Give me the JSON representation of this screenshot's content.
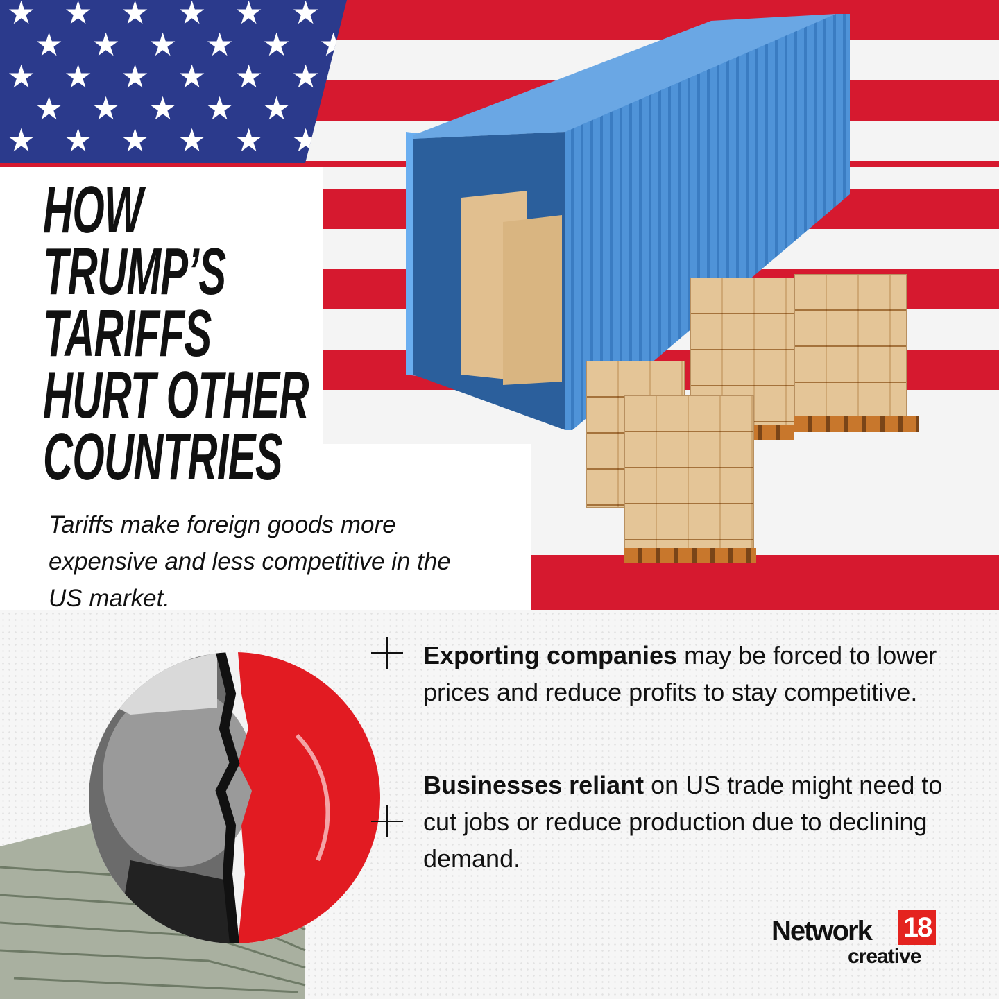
{
  "headline": {
    "lines": [
      "HOW",
      "TRUMP’S",
      "TARIFFS",
      "HURT OTHER",
      "COUNTRIES"
    ]
  },
  "subtitle": "Tariffs make foreign goods more expensive and less competitive in the US market.",
  "bullets": [
    {
      "bold": "Exporting companies",
      "rest": " may be forced to lower prices and reduce profits to stay competitive.",
      "icon": "plus-icon"
    },
    {
      "bold": "Businesses reliant",
      "rest": " on US trade might need to cut jobs or reduce production due to declining demand.",
      "icon": "plus-icon"
    }
  ],
  "logo": {
    "word": "Network",
    "number": "18",
    "sub": "creative"
  },
  "colors": {
    "flag_red": "#d6192f",
    "flag_blue": "#2b3a8c",
    "container_blue": "#4f93d8",
    "logo_red": "#e4231f"
  }
}
